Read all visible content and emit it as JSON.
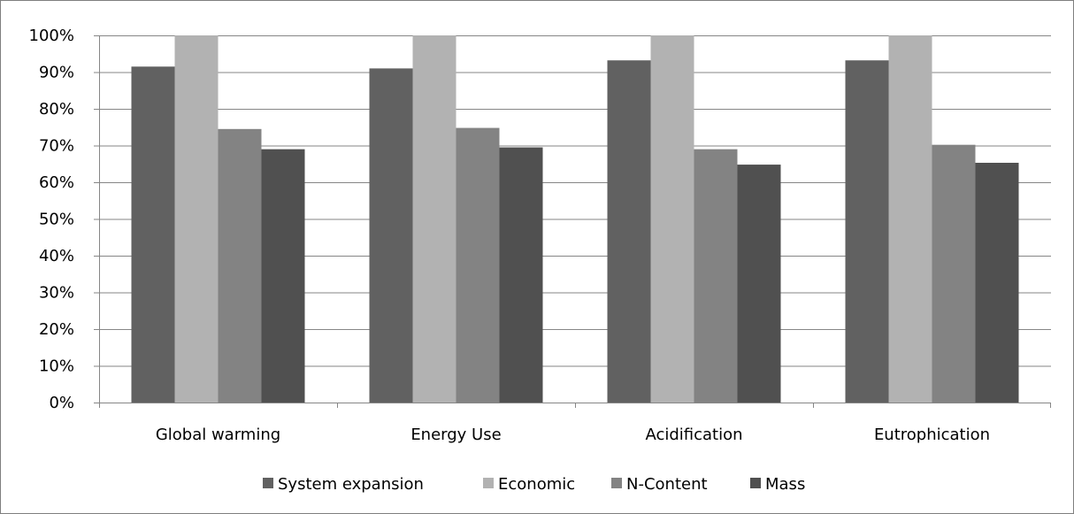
{
  "chart_data": {
    "type": "bar",
    "categories": [
      "Global warming",
      "Energy Use",
      "Acidification",
      "Eutrophication"
    ],
    "series": [
      {
        "name": "System expansion",
        "values": [
          91.5,
          91.0,
          93.2,
          93.2
        ],
        "color": "#616161"
      },
      {
        "name": "Economic",
        "values": [
          100,
          100,
          100,
          100
        ],
        "color": "#b2b2b2"
      },
      {
        "name": "N-Content",
        "values": [
          74.5,
          74.8,
          69.0,
          70.2
        ],
        "color": "#838383"
      },
      {
        "name": "Mass",
        "values": [
          69.0,
          69.5,
          64.8,
          65.3
        ],
        "color": "#505050"
      }
    ],
    "ylim": [
      0,
      100
    ],
    "yticks": [
      "0%",
      "10%",
      "20%",
      "30%",
      "40%",
      "50%",
      "60%",
      "70%",
      "80%",
      "90%",
      "100%"
    ],
    "grid": true,
    "legend_position": "bottom",
    "gridline_color": "#868686"
  }
}
